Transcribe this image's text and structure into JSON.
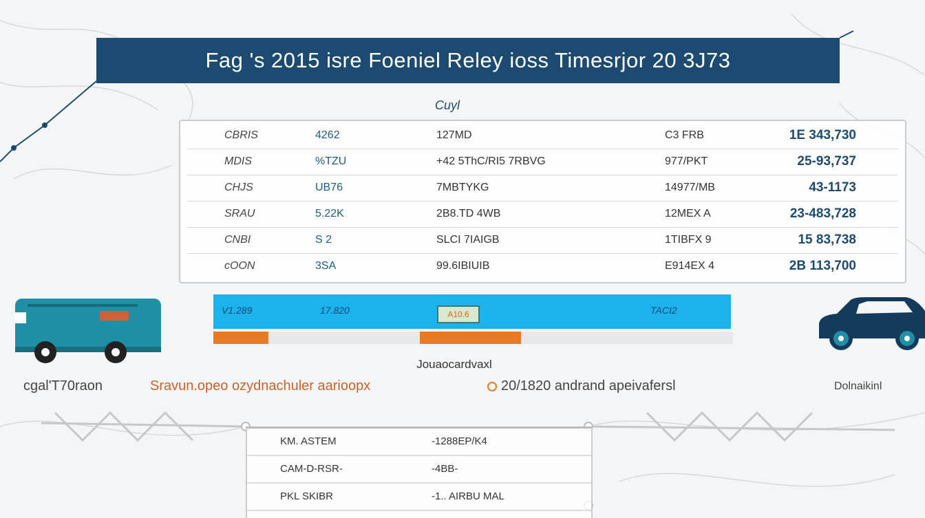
{
  "title": "Fag 's 2015 isre Foeniel Reley ioss Timesrjor 20 3J73",
  "table_caption": "Cuyl",
  "table": {
    "rows": [
      [
        "CBRIS",
        "4262",
        "127MD",
        "C3 FRB",
        "1E 343,730"
      ],
      [
        "MDIS",
        "%TZU",
        "+42 5ThC/RI5 7RBVG",
        "977/PKT",
        "25-93,737"
      ],
      [
        "CHJS",
        "UB76",
        "7MBTYKG",
        "14977/MB",
        "43-1173"
      ],
      [
        "SRAU",
        "5.22K",
        "2B8.TD 4WB",
        "12MEX A",
        "23-483,728"
      ],
      [
        "CNBI",
        "S 2",
        "SLCI 7IAIGB",
        "1TIBFX 9",
        "15 83,738"
      ],
      [
        "cOON",
        "3SA",
        "99.6IBIUIB",
        "E914EX 4",
        "2B 113,700"
      ]
    ]
  },
  "bar": {
    "labels": [
      "V1.289",
      "17.820",
      "TACI2"
    ],
    "badge": "A10.6",
    "accent": "#1cb3ec",
    "orange": "#e97a25"
  },
  "bar_subcaption": "Jouaocardvaxl",
  "legend": {
    "left": "cgal'T70raon",
    "main": "Sravun.opeo ozydnachuler aarioopx",
    "second": "20/1820 andrand apeivafersl",
    "right": "Dolnaikinl"
  },
  "bottom_table": {
    "rows": [
      [
        "KM. ASTEM",
        "-1288EP/K4"
      ],
      [
        "CAM-D-RSR-",
        "-4BB-"
      ],
      [
        "PKL SKIBR",
        "-1.. AIRBU MAL"
      ]
    ]
  },
  "icons": {
    "left": "bus-icon",
    "right": "car-icon"
  },
  "colors": {
    "title_bg": "#1d4a70",
    "bus": "#1f8fa6",
    "car": "#143a5e"
  }
}
